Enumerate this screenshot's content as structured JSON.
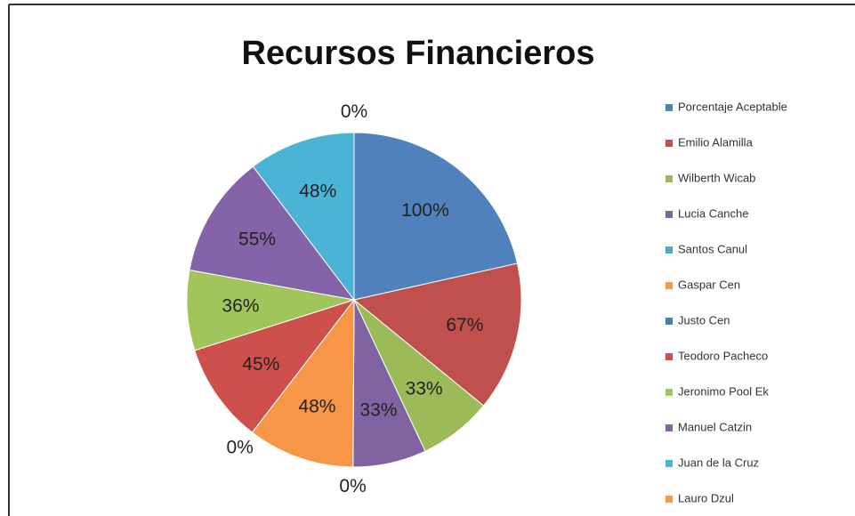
{
  "chart_data": {
    "type": "pie",
    "title": "Recursos Financieros",
    "categories": [
      "Porcentaje Aceptable",
      "Emilio Alamilla",
      "Wilberth Wicab",
      "Lucia Canche",
      "Santos Canul",
      "Gaspar Cen",
      "Justo Cen",
      "Teodoro Pacheco",
      "Jeronimo Pool Ek",
      "Manuel Catzin",
      "Juan de la Cruz",
      "Lauro Dzul"
    ],
    "values": [
      100,
      67,
      33,
      33,
      0,
      48,
      0,
      45,
      36,
      55,
      48,
      0
    ],
    "value_labels": [
      "100%",
      "67%",
      "33%",
      "33%",
      "0%",
      "48%",
      "0%",
      "45%",
      "36%",
      "55%",
      "48%",
      "0%"
    ],
    "colors": [
      "#4F81BD",
      "#C0504D",
      "#9BBB59",
      "#8064A2",
      "#4BACC6",
      "#F79646",
      "#4A7EBB",
      "#CE504D",
      "#A0C55A",
      "#8463A8",
      "#4BB4D4",
      "#F79646"
    ],
    "legend": "right"
  }
}
